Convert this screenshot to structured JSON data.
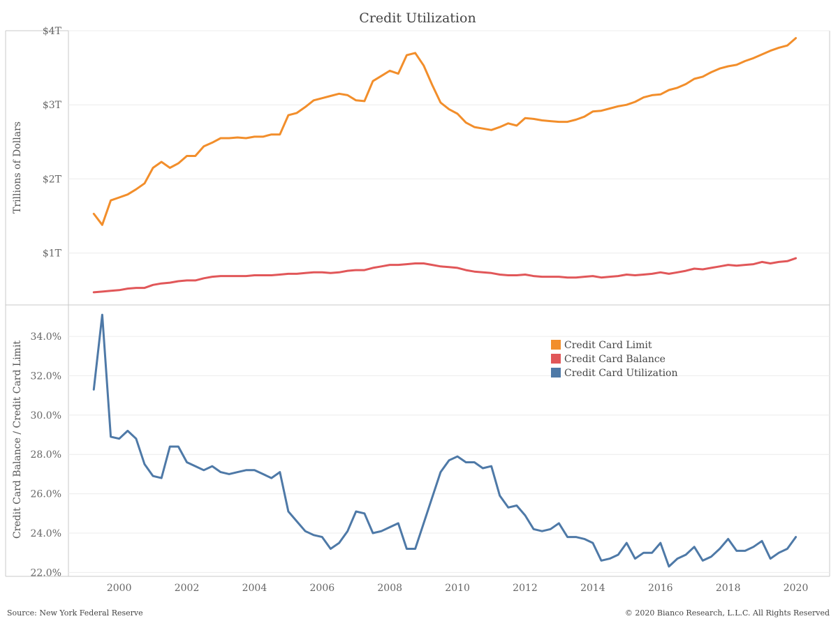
{
  "chart_data": [
    {
      "type": "line",
      "title": "Credit Utilization",
      "ylabel": "Trillions of Dollars",
      "ylim": [
        0.3,
        4.0
      ],
      "yticks": [
        {
          "value": 1,
          "label": "$1T"
        },
        {
          "value": 2,
          "label": "$2T"
        },
        {
          "value": 3,
          "label": "$3T"
        },
        {
          "value": 4,
          "label": "$4T"
        }
      ],
      "grid": true,
      "series": [
        {
          "name": "Credit Card Limit",
          "color": "#f28e2b",
          "x": [
            1999.25,
            1999.5,
            1999.75,
            2000.0,
            2000.25,
            2000.5,
            2000.75,
            2001.0,
            2001.25,
            2001.5,
            2001.75,
            2002.0,
            2002.25,
            2002.5,
            2002.75,
            2003.0,
            2003.25,
            2003.5,
            2003.75,
            2004.0,
            2004.25,
            2004.5,
            2004.75,
            2005.0,
            2005.25,
            2005.5,
            2005.75,
            2006.0,
            2006.25,
            2006.5,
            2006.75,
            2007.0,
            2007.25,
            2007.5,
            2007.75,
            2008.0,
            2008.25,
            2008.5,
            2008.75,
            2009.0,
            2009.25,
            2009.5,
            2009.75,
            2010.0,
            2010.25,
            2010.5,
            2010.75,
            2011.0,
            2011.25,
            2011.5,
            2011.75,
            2012.0,
            2012.25,
            2012.5,
            2012.75,
            2013.0,
            2013.25,
            2013.5,
            2013.75,
            2014.0,
            2014.25,
            2014.5,
            2014.75,
            2015.0,
            2015.25,
            2015.5,
            2015.75,
            2016.0,
            2016.25,
            2016.5,
            2016.75,
            2017.0,
            2017.25,
            2017.5,
            2017.75,
            2018.0,
            2018.25,
            2018.5,
            2018.75,
            2019.0,
            2019.25,
            2019.5,
            2019.75,
            2020.0
          ],
          "values": [
            1.53,
            1.38,
            1.71,
            1.75,
            1.79,
            1.86,
            1.94,
            2.15,
            2.23,
            2.15,
            2.21,
            2.31,
            2.31,
            2.44,
            2.49,
            2.55,
            2.55,
            2.56,
            2.55,
            2.57,
            2.57,
            2.6,
            2.6,
            2.86,
            2.89,
            2.97,
            3.06,
            3.09,
            3.12,
            3.15,
            3.13,
            3.06,
            3.05,
            3.32,
            3.39,
            3.46,
            3.42,
            3.67,
            3.7,
            3.53,
            3.27,
            3.03,
            2.94,
            2.88,
            2.76,
            2.7,
            2.68,
            2.66,
            2.7,
            2.75,
            2.72,
            2.82,
            2.81,
            2.79,
            2.78,
            2.77,
            2.77,
            2.8,
            2.84,
            2.91,
            2.92,
            2.95,
            2.98,
            3.0,
            3.04,
            3.1,
            3.13,
            3.14,
            3.2,
            3.23,
            3.28,
            3.35,
            3.38,
            3.44,
            3.49,
            3.52,
            3.54,
            3.59,
            3.63,
            3.68,
            3.73,
            3.77,
            3.8,
            3.9
          ]
        },
        {
          "name": "Credit Card Balance",
          "color": "#e15759",
          "x": [
            1999.25,
            1999.5,
            1999.75,
            2000.0,
            2000.25,
            2000.5,
            2000.75,
            2001.0,
            2001.25,
            2001.5,
            2001.75,
            2002.0,
            2002.25,
            2002.5,
            2002.75,
            2003.0,
            2003.25,
            2003.5,
            2003.75,
            2004.0,
            2004.25,
            2004.5,
            2004.75,
            2005.0,
            2005.25,
            2005.5,
            2005.75,
            2006.0,
            2006.25,
            2006.5,
            2006.75,
            2007.0,
            2007.25,
            2007.5,
            2007.75,
            2008.0,
            2008.25,
            2008.5,
            2008.75,
            2009.0,
            2009.25,
            2009.5,
            2009.75,
            2010.0,
            2010.25,
            2010.5,
            2010.75,
            2011.0,
            2011.25,
            2011.5,
            2011.75,
            2012.0,
            2012.25,
            2012.5,
            2012.75,
            2013.0,
            2013.25,
            2013.5,
            2013.75,
            2014.0,
            2014.25,
            2014.5,
            2014.75,
            2015.0,
            2015.25,
            2015.5,
            2015.75,
            2016.0,
            2016.25,
            2016.5,
            2016.75,
            2017.0,
            2017.25,
            2017.5,
            2017.75,
            2018.0,
            2018.25,
            2018.5,
            2018.75,
            2019.0,
            2019.25,
            2019.5,
            2019.75,
            2020.0
          ],
          "values": [
            0.47,
            0.48,
            0.49,
            0.5,
            0.52,
            0.53,
            0.53,
            0.57,
            0.59,
            0.6,
            0.62,
            0.63,
            0.63,
            0.66,
            0.68,
            0.69,
            0.69,
            0.69,
            0.69,
            0.7,
            0.7,
            0.7,
            0.71,
            0.72,
            0.72,
            0.73,
            0.74,
            0.74,
            0.73,
            0.74,
            0.76,
            0.77,
            0.77,
            0.8,
            0.82,
            0.84,
            0.84,
            0.85,
            0.86,
            0.86,
            0.84,
            0.82,
            0.81,
            0.8,
            0.77,
            0.75,
            0.74,
            0.73,
            0.71,
            0.7,
            0.7,
            0.71,
            0.69,
            0.68,
            0.68,
            0.68,
            0.67,
            0.67,
            0.68,
            0.69,
            0.67,
            0.68,
            0.69,
            0.71,
            0.7,
            0.71,
            0.72,
            0.74,
            0.72,
            0.74,
            0.76,
            0.79,
            0.78,
            0.8,
            0.82,
            0.84,
            0.83,
            0.84,
            0.85,
            0.88,
            0.86,
            0.88,
            0.89,
            0.93
          ]
        }
      ]
    },
    {
      "type": "line",
      "ylabel": "Credit Card Balance / Credit Card Limit",
      "ylim": [
        21.8,
        35.6
      ],
      "yticks": [
        {
          "value": 22,
          "label": "22.0%"
        },
        {
          "value": 24,
          "label": "24.0%"
        },
        {
          "value": 26,
          "label": "26.0%"
        },
        {
          "value": 28,
          "label": "28.0%"
        },
        {
          "value": 30,
          "label": "30.0%"
        },
        {
          "value": 32,
          "label": "32.0%"
        },
        {
          "value": 34,
          "label": "34.0%"
        }
      ],
      "xlim": [
        1998.5,
        2021.0
      ],
      "xticks": [
        {
          "value": 2000,
          "label": "2000"
        },
        {
          "value": 2002,
          "label": "2002"
        },
        {
          "value": 2004,
          "label": "2004"
        },
        {
          "value": 2006,
          "label": "2006"
        },
        {
          "value": 2008,
          "label": "2008"
        },
        {
          "value": 2010,
          "label": "2010"
        },
        {
          "value": 2012,
          "label": "2012"
        },
        {
          "value": 2014,
          "label": "2014"
        },
        {
          "value": 2016,
          "label": "2016"
        },
        {
          "value": 2018,
          "label": "2018"
        },
        {
          "value": 2020,
          "label": "2020"
        }
      ],
      "grid": true,
      "series": [
        {
          "name": "Credit Card Utilization",
          "color": "#4e79a7",
          "x": [
            1999.25,
            1999.5,
            1999.75,
            2000.0,
            2000.25,
            2000.5,
            2000.75,
            2001.0,
            2001.25,
            2001.5,
            2001.75,
            2002.0,
            2002.25,
            2002.5,
            2002.75,
            2003.0,
            2003.25,
            2003.5,
            2003.75,
            2004.0,
            2004.25,
            2004.5,
            2004.75,
            2005.0,
            2005.25,
            2005.5,
            2005.75,
            2006.0,
            2006.25,
            2006.5,
            2006.75,
            2007.0,
            2007.25,
            2007.5,
            2007.75,
            2008.0,
            2008.25,
            2008.5,
            2008.75,
            2009.0,
            2009.25,
            2009.5,
            2009.75,
            2010.0,
            2010.25,
            2010.5,
            2010.75,
            2011.0,
            2011.25,
            2011.5,
            2011.75,
            2012.0,
            2012.25,
            2012.5,
            2012.75,
            2013.0,
            2013.25,
            2013.5,
            2013.75,
            2014.0,
            2014.25,
            2014.5,
            2014.75,
            2015.0,
            2015.25,
            2015.5,
            2015.75,
            2016.0,
            2016.25,
            2016.5,
            2016.75,
            2017.0,
            2017.25,
            2017.5,
            2017.75,
            2018.0,
            2018.25,
            2018.5,
            2018.75,
            2019.0,
            2019.25,
            2019.5,
            2019.75,
            2020.0
          ],
          "values": [
            31.3,
            35.1,
            28.9,
            28.8,
            29.2,
            28.8,
            27.5,
            26.9,
            26.8,
            28.4,
            28.4,
            27.6,
            27.4,
            27.2,
            27.4,
            27.1,
            27.0,
            27.1,
            27.2,
            27.2,
            27.0,
            26.8,
            27.1,
            25.1,
            24.6,
            24.1,
            23.9,
            23.8,
            23.2,
            23.5,
            24.1,
            25.1,
            25.0,
            24.0,
            24.1,
            24.3,
            24.5,
            23.2,
            23.2,
            24.5,
            25.8,
            27.1,
            27.7,
            27.9,
            27.6,
            27.6,
            27.3,
            27.4,
            25.9,
            25.3,
            25.4,
            24.9,
            24.2,
            24.1,
            24.2,
            24.5,
            23.8,
            23.8,
            23.7,
            23.5,
            22.6,
            22.7,
            22.9,
            23.5,
            22.7,
            23.0,
            23.0,
            23.5,
            22.3,
            22.7,
            22.9,
            23.3,
            22.6,
            22.8,
            23.2,
            23.7,
            23.1,
            23.1,
            23.3,
            23.6,
            22.7,
            23.0,
            23.2,
            23.8
          ]
        }
      ]
    }
  ],
  "legend": {
    "placement": "right",
    "items": [
      {
        "label": "Credit Card Limit",
        "color": "#f28e2b"
      },
      {
        "label": "Credit Card Balance",
        "color": "#e15759"
      },
      {
        "label": "Credit Card Utilization",
        "color": "#4e79a7"
      }
    ]
  },
  "footer": {
    "source": "Source: New York Federal Reserve",
    "copyright": "© 2020 Bianco Research, L.L.C. All Rights Reserved"
  }
}
